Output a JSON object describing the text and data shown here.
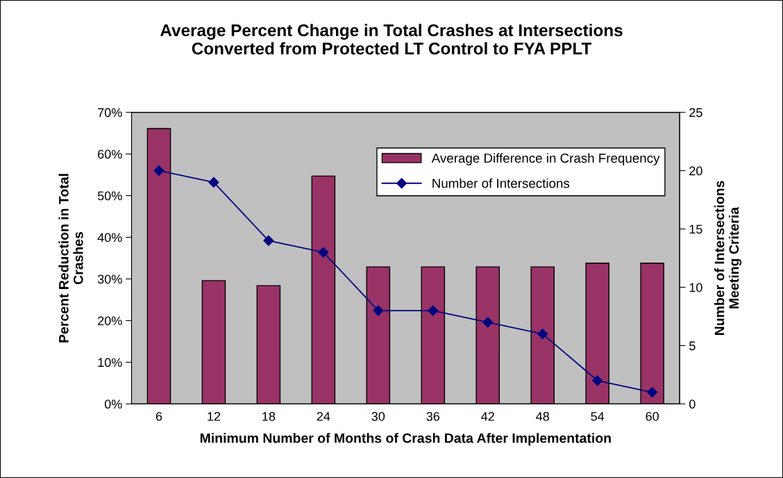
{
  "chart_data": {
    "type": "bar",
    "title": "Average Percent Change in Total Crashes at Intersections\nConverted from Protected LT Control to FYA PPLT",
    "xlabel": "Minimum Number of Months of Crash Data After Implementation",
    "ylabel": "Percent Reduction in Total\nCrashes",
    "y2label": "Number of Intersections\nMeeting Criteria",
    "categories": [
      "6",
      "12",
      "18",
      "24",
      "30",
      "36",
      "42",
      "48",
      "54",
      "60"
    ],
    "series": [
      {
        "name": "Average Difference in Crash Frequency",
        "color": "#993366",
        "values": [
          66.1,
          29.6,
          28.4,
          54.7,
          32.9,
          32.9,
          32.9,
          32.9,
          33.8,
          33.8
        ]
      },
      {
        "name": "Number of Intersections",
        "type": "line",
        "axis": "y2",
        "color": "#000080",
        "marker": "diamond",
        "values": [
          20,
          19,
          14,
          13,
          8,
          8,
          7,
          6,
          2,
          1
        ]
      }
    ],
    "ylim": [
      0,
      70
    ],
    "yticks": [
      {
        "value": 0,
        "label": "0%"
      },
      {
        "value": 10,
        "label": "10%"
      },
      {
        "value": 20,
        "label": "20%"
      },
      {
        "value": 30,
        "label": "30%"
      },
      {
        "value": 40,
        "label": "40%"
      },
      {
        "value": 50,
        "label": "50%"
      },
      {
        "value": 60,
        "label": "60%"
      },
      {
        "value": 70,
        "label": "70%"
      }
    ],
    "y2lim": [
      0,
      25
    ],
    "y2ticks": [
      0,
      5,
      10,
      15,
      20,
      25
    ],
    "grid": false,
    "legend": "top right"
  }
}
